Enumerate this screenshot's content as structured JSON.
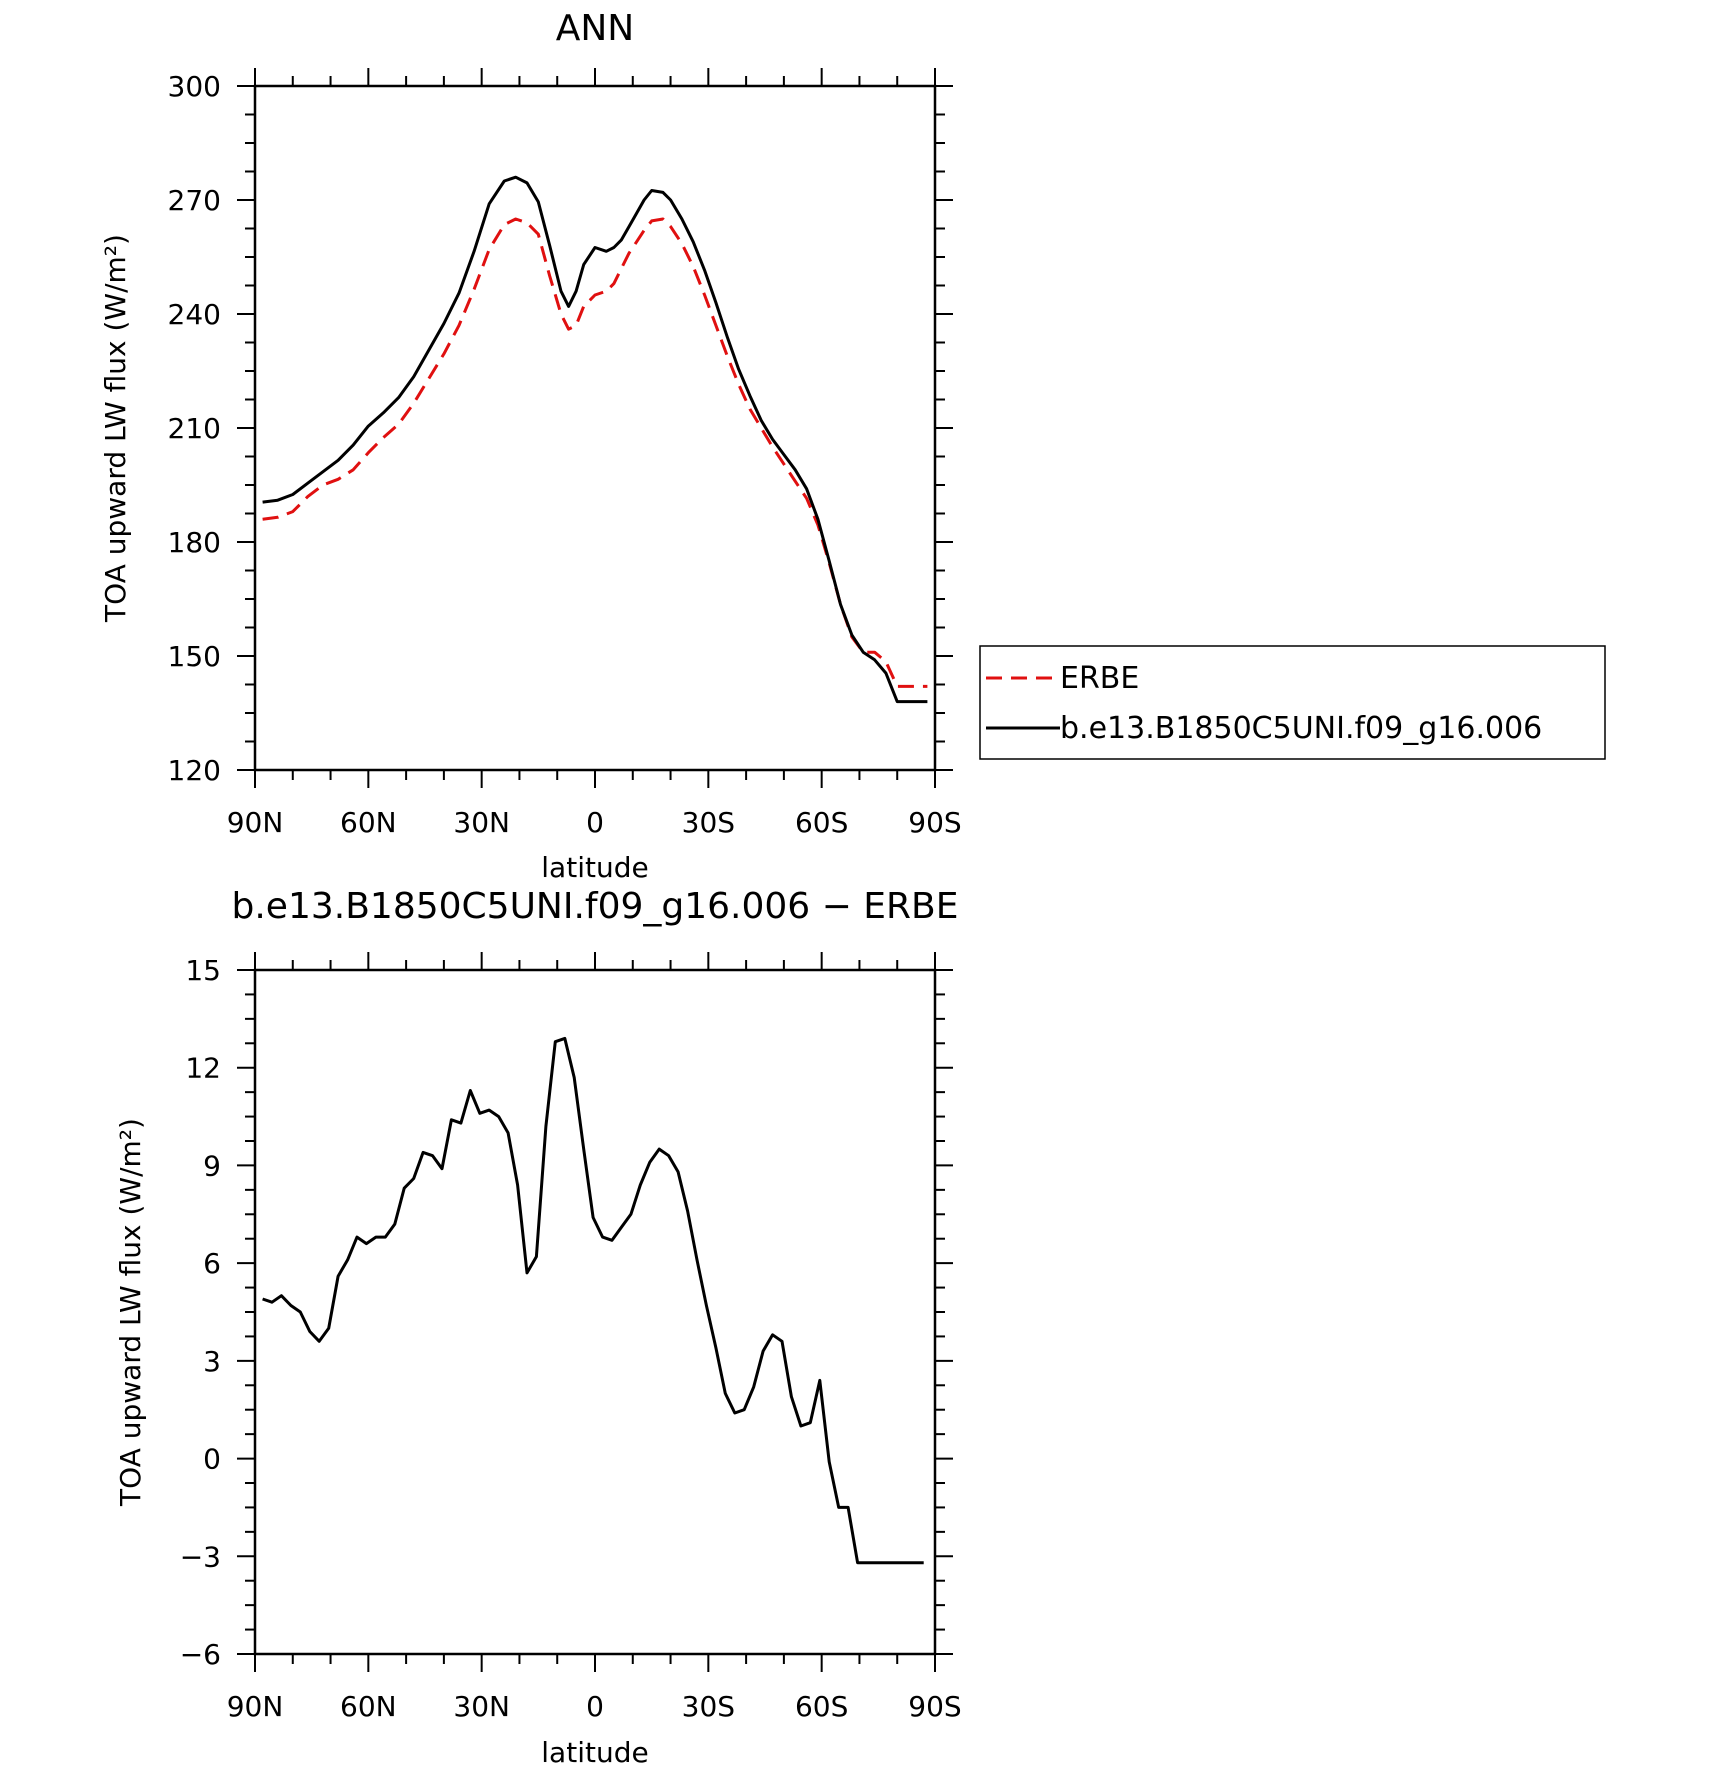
{
  "chart_data": [
    {
      "type": "line",
      "title": "ANN",
      "xlabel": "latitude",
      "ylabel": "TOA upward LW flux (W/m²)",
      "ylim": [
        120,
        300
      ],
      "xlim": [
        90,
        -90
      ],
      "xticks": [
        {
          "value": 90,
          "label": "90N"
        },
        {
          "value": 60,
          "label": "60N"
        },
        {
          "value": 30,
          "label": "30N"
        },
        {
          "value": 0,
          "label": "0"
        },
        {
          "value": -30,
          "label": "30S"
        },
        {
          "value": -60,
          "label": "60S"
        },
        {
          "value": -90,
          "label": "90S"
        }
      ],
      "yticks": [
        120,
        150,
        180,
        210,
        240,
        270,
        300
      ],
      "legend": {
        "placement": "right"
      },
      "series": [
        {
          "name": "ERBE",
          "color": "#e01010",
          "dash": true,
          "x": [
            88,
            84,
            80,
            76,
            72,
            68,
            64,
            60,
            56,
            52,
            48,
            44,
            40,
            36,
            32,
            28,
            24,
            21,
            18,
            15,
            12,
            9,
            7,
            5,
            3,
            0,
            -3,
            -5,
            -7,
            -9,
            -11,
            -13,
            -15,
            -18,
            -20,
            -23,
            -26,
            -29,
            -32,
            -35,
            -38,
            -41,
            -44,
            -47,
            -50,
            -53,
            -56,
            -59,
            -62,
            -65,
            -68,
            -71,
            -74,
            -77,
            -80,
            -83,
            -86,
            -88
          ],
          "values": [
            186,
            186.5,
            188,
            192,
            195,
            196.5,
            199,
            203.5,
            207.5,
            211,
            216.5,
            223,
            229.5,
            237,
            246.5,
            257,
            263.5,
            265,
            264,
            261,
            250,
            240,
            236,
            237,
            242,
            245,
            246,
            248,
            252,
            256,
            259,
            262,
            264.5,
            265,
            263,
            258.5,
            252.5,
            245,
            237,
            229,
            221.5,
            215,
            210,
            205,
            200.5,
            196,
            191.5,
            184.5,
            174.5,
            163.5,
            155,
            151,
            151,
            148.5,
            142,
            142,
            142,
            142
          ]
        },
        {
          "name": "b.e13.B1850C5UNI.f09_g16.006",
          "color": "#000000",
          "dash": false,
          "x": [
            88,
            84,
            80,
            76,
            72,
            68,
            64,
            60,
            56,
            52,
            48,
            44,
            40,
            36,
            32,
            28,
            24,
            21,
            18,
            15,
            12,
            9,
            7,
            5,
            3,
            0,
            -3,
            -5,
            -7,
            -9,
            -11,
            -13,
            -15,
            -18,
            -20,
            -23,
            -26,
            -29,
            -32,
            -35,
            -38,
            -41,
            -44,
            -47,
            -50,
            -53,
            -56,
            -59,
            -62,
            -65,
            -68,
            -71,
            -74,
            -77,
            -80,
            -83,
            -86,
            -88
          ],
          "values": [
            190.5,
            191,
            192.5,
            195.5,
            198.5,
            201.5,
            205.5,
            210.5,
            214,
            218,
            223.5,
            230.5,
            237.5,
            245.5,
            256.5,
            269,
            275,
            276,
            274.5,
            269.5,
            258,
            246,
            242,
            246,
            253,
            257.5,
            256.5,
            257.5,
            259.5,
            263,
            266.5,
            270,
            272.5,
            272,
            270,
            265,
            259,
            251.5,
            243,
            234,
            225.5,
            218.5,
            212,
            207,
            203,
            199,
            194,
            186,
            175,
            163.5,
            155.5,
            151,
            149,
            145.5,
            138,
            138,
            138,
            138
          ]
        }
      ]
    },
    {
      "type": "line",
      "title": "b.e13.B1850C5UNI.f09_g16.006 − ERBE",
      "xlabel": "latitude",
      "ylabel": "TOA upward LW flux (W/m²)",
      "ylim": [
        -6,
        15
      ],
      "xlim": [
        90,
        -90
      ],
      "xticks": [
        {
          "value": 90,
          "label": "90N"
        },
        {
          "value": 60,
          "label": "60N"
        },
        {
          "value": 30,
          "label": "30N"
        },
        {
          "value": 0,
          "label": "0"
        },
        {
          "value": -30,
          "label": "30S"
        },
        {
          "value": -60,
          "label": "60S"
        },
        {
          "value": -90,
          "label": "90S"
        }
      ],
      "yticks": [
        -6,
        -3,
        0,
        3,
        6,
        9,
        12,
        15
      ],
      "series": [
        {
          "color": "#000000",
          "dash": false,
          "x": [
            88,
            85.5,
            83,
            80.5,
            78,
            75.5,
            73,
            70.5,
            68,
            65.5,
            63,
            60.5,
            58,
            55.5,
            53,
            50.5,
            48,
            45.5,
            43,
            40.5,
            38,
            35.5,
            33,
            30.5,
            28,
            25.5,
            23,
            20.5,
            18,
            15.5,
            13,
            10.5,
            8,
            5.5,
            3,
            0.5,
            -2,
            -4.5,
            -7,
            -9.5,
            -12,
            -14.5,
            -17,
            -19.5,
            -22,
            -24.5,
            -27,
            -29.5,
            -32,
            -34.5,
            -37,
            -39.5,
            -42,
            -44.5,
            -47,
            -49.5,
            -52,
            -54.5,
            -57,
            -59.5,
            -62,
            -64.5,
            -67,
            -69.5,
            -72,
            -74.5,
            -77,
            -79.5,
            -82,
            -84.5,
            -87
          ],
          "values": [
            4.9,
            4.8,
            5.0,
            4.7,
            4.5,
            3.9,
            3.6,
            4.0,
            5.6,
            6.1,
            6.8,
            6.6,
            6.8,
            6.8,
            7.2,
            8.3,
            8.6,
            9.4,
            9.3,
            8.9,
            10.4,
            10.3,
            11.3,
            10.6,
            10.7,
            10.5,
            10.0,
            8.4,
            5.7,
            6.2,
            10.2,
            12.8,
            12.9,
            11.7,
            9.5,
            7.4,
            6.8,
            6.7,
            7.1,
            7.5,
            8.4,
            9.1,
            9.5,
            9.3,
            8.8,
            7.6,
            6.1,
            4.7,
            3.4,
            2.0,
            1.4,
            1.5,
            2.2,
            3.3,
            3.8,
            3.6,
            1.9,
            1.0,
            1.1,
            2.4,
            -0.1,
            -1.5,
            -1.5,
            -3.2,
            -3.2,
            -3.2,
            -3.2,
            -3.2,
            -3.2,
            -3.2,
            -3.2
          ]
        }
      ]
    }
  ]
}
